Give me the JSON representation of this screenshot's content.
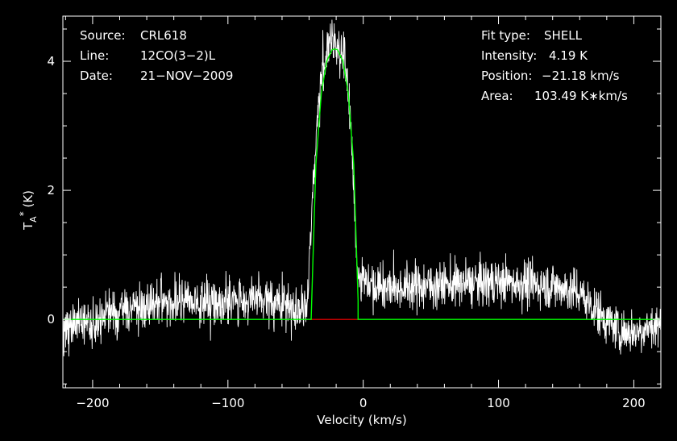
{
  "info_left": {
    "source_label": "Source:",
    "source_value": "CRL618",
    "line_label": "Line:",
    "line_value": "12CO(3−2)L",
    "date_label": "Date:",
    "date_value": "21−NOV−2009"
  },
  "info_right": {
    "fit_label": "Fit type:",
    "fit_value": "SHELL",
    "intensity_label": "Intensity:",
    "intensity_value": "4.19 K",
    "position_label": "Position:",
    "position_value": "−21.18 km/s",
    "area_label": "Area:",
    "area_value": "103.49 K∗km/s"
  },
  "colors": {
    "background": "#000000",
    "axes": "#ffffff",
    "spectrum": "#ffffff",
    "fit": "#00ff00",
    "baseline_fill": "#ff0000"
  },
  "chart_data": {
    "type": "line",
    "xlabel": "Velocity (km/s)",
    "ylabel": "T_A* (K)",
    "xlim": [
      -222,
      220
    ],
    "ylim": [
      -1.06,
      4.7
    ],
    "xticks": [
      -200,
      -100,
      0,
      100,
      200
    ],
    "xtick_labels": [
      "−200",
      "−100",
      "0",
      "100",
      "200"
    ],
    "yticks": [
      0,
      2,
      4
    ],
    "ytick_labels": [
      "0",
      "2",
      "4"
    ],
    "grid": false,
    "series": [
      {
        "role": "observed spectrum (noisy)",
        "x": [
          -222,
          -210,
          -200,
          -190,
          -180,
          -170,
          -160,
          -150,
          -140,
          -130,
          -120,
          -110,
          -100,
          -90,
          -80,
          -70,
          -60,
          -50,
          -42,
          -38,
          -34,
          -30,
          -26,
          -22,
          -18,
          -14,
          -10,
          -7,
          -4,
          0,
          10,
          20,
          40,
          60,
          80,
          100,
          120,
          140,
          150,
          160,
          170,
          180,
          190,
          200,
          210,
          220
        ],
        "y": [
          -0.15,
          -0.05,
          0.0,
          0.08,
          0.13,
          0.18,
          0.22,
          0.25,
          0.26,
          0.27,
          0.27,
          0.28,
          0.29,
          0.3,
          0.3,
          0.28,
          0.24,
          0.18,
          0.1,
          1.7,
          3.1,
          3.9,
          4.2,
          4.3,
          4.25,
          4.05,
          3.3,
          2.0,
          0.7,
          0.62,
          0.55,
          0.5,
          0.52,
          0.54,
          0.56,
          0.58,
          0.56,
          0.52,
          0.48,
          0.4,
          0.2,
          -0.02,
          -0.18,
          -0.2,
          -0.12,
          -0.1
        ],
        "noise_rms": 0.18
      },
      {
        "role": "shell fit",
        "x": [
          -222,
          -38.5,
          -35,
          -31,
          -27,
          -23,
          -21.18,
          -19,
          -15,
          -11,
          -7,
          -3.8,
          -3.8,
          220
        ],
        "y": [
          0,
          0,
          2.4,
          3.5,
          4.0,
          4.18,
          4.19,
          4.18,
          4.0,
          3.5,
          2.4,
          0.3,
          0,
          0
        ]
      }
    ],
    "fit_window": [
      -38.5,
      -3.8
    ]
  }
}
